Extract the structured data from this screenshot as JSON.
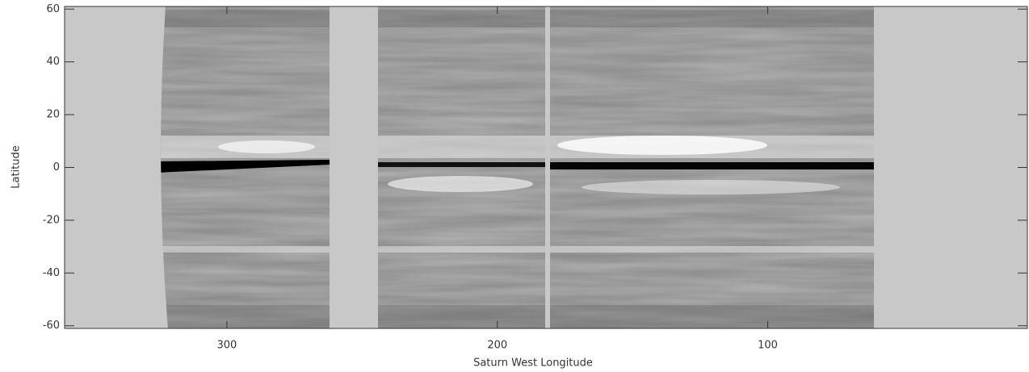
{
  "chart_data": {
    "type": "image",
    "x_label": "Saturn West Longitude",
    "y_label": "Latitude",
    "xlim": [
      360,
      4
    ],
    "xticks": [
      300,
      200,
      100
    ],
    "ylim": [
      -61,
      61
    ],
    "yticks": [
      -60,
      -40,
      -20,
      0,
      20,
      40,
      60
    ]
  }
}
